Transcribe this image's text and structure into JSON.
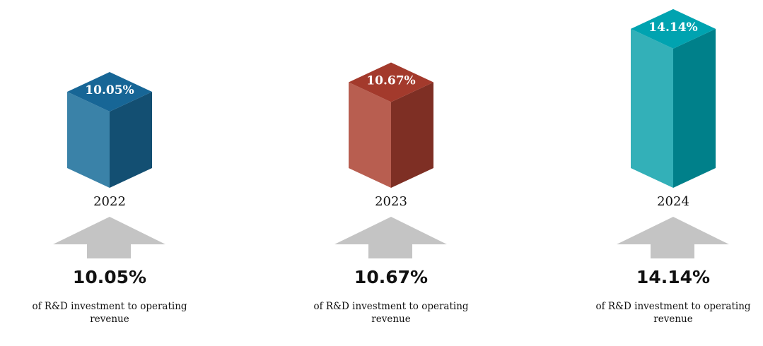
{
  "chart_data": {
    "type": "bar",
    "style": "3d-isometric-columns",
    "categories": [
      "2022",
      "2023",
      "2024"
    ],
    "values": [
      10.05,
      10.67,
      14.14
    ],
    "value_labels": [
      "10.05%",
      "10.67%",
      "14.14%"
    ],
    "caption_lines": [
      "of R&D investment to operating",
      "revenue"
    ],
    "indicator": "up-arrow",
    "colors": [
      {
        "top": "#176696",
        "left": "#3a82a8",
        "right": "#134f72"
      },
      {
        "top": "#a33a2c",
        "left": "#b85e50",
        "right": "#7e2f24"
      },
      {
        "top": "#00a3b0",
        "left": "#33b0b8",
        "right": "#00808a"
      }
    ],
    "arrow_color": "#c4c4c4",
    "title": "",
    "xlabel": "",
    "ylabel": "",
    "grid": false,
    "legend": "none"
  }
}
